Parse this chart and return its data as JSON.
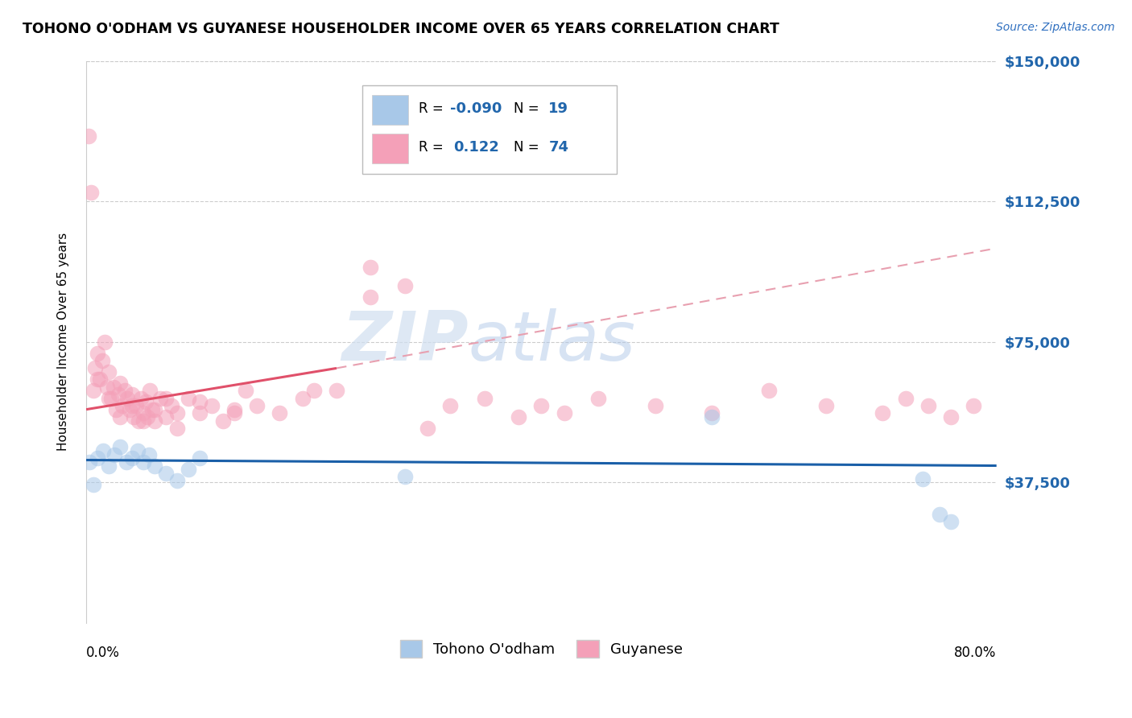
{
  "title": "TOHONO O'ODHAM VS GUYANESE HOUSEHOLDER INCOME OVER 65 YEARS CORRELATION CHART",
  "source": "Source: ZipAtlas.com",
  "ylabel": "Householder Income Over 65 years",
  "ytick_labels": [
    "$37,500",
    "$75,000",
    "$112,500",
    "$150,000"
  ],
  "ytick_values": [
    37500,
    75000,
    112500,
    150000
  ],
  "xlim": [
    0.0,
    80.0
  ],
  "ylim": [
    0,
    150000
  ],
  "watermark_left": "ZIP",
  "watermark_right": "atlas",
  "blue_color": "#a8c8e8",
  "pink_color": "#f4a0b8",
  "blue_line_color": "#1a5fa8",
  "pink_line_color": "#e0506a",
  "pink_dash_color": "#e8a0b0",
  "tohono_x": [
    0.3,
    0.6,
    1.0,
    1.5,
    2.0,
    2.5,
    3.0,
    3.5,
    4.0,
    4.5,
    5.0,
    5.5,
    6.0,
    7.0,
    8.0,
    9.0,
    10.0,
    28.0,
    55.0,
    73.5,
    75.0,
    76.0
  ],
  "tohono_y": [
    43000,
    37000,
    44000,
    46000,
    42000,
    45000,
    47000,
    43000,
    44000,
    46000,
    43000,
    45000,
    42000,
    40000,
    38000,
    41000,
    44000,
    39000,
    55000,
    38500,
    29000,
    27000
  ],
  "guyanese_x": [
    0.2,
    0.4,
    0.6,
    0.8,
    1.0,
    1.2,
    1.4,
    1.6,
    1.8,
    2.0,
    2.2,
    2.4,
    2.6,
    2.8,
    3.0,
    3.2,
    3.4,
    3.6,
    3.8,
    4.0,
    4.2,
    4.4,
    4.6,
    4.8,
    5.0,
    5.2,
    5.4,
    5.6,
    5.8,
    6.0,
    6.5,
    7.0,
    7.5,
    8.0,
    9.0,
    10.0,
    11.0,
    12.0,
    13.0,
    14.0,
    15.0,
    17.0,
    19.0,
    22.0,
    25.0,
    28.0,
    32.0,
    38.0,
    40.0,
    42.0,
    45.0,
    50.0,
    55.0,
    60.0,
    65.0,
    70.0,
    72.0,
    74.0,
    76.0,
    78.0,
    1.0,
    2.0,
    3.0,
    4.0,
    5.0,
    6.0,
    7.0,
    8.0,
    10.0,
    13.0,
    20.0,
    25.0,
    30.0,
    35.0
  ],
  "guyanese_y": [
    130000,
    115000,
    62000,
    68000,
    72000,
    65000,
    70000,
    75000,
    63000,
    67000,
    60000,
    63000,
    57000,
    61000,
    64000,
    58000,
    62000,
    60000,
    57000,
    61000,
    55000,
    58000,
    54000,
    60000,
    56000,
    59000,
    55000,
    62000,
    57000,
    54000,
    60000,
    55000,
    58000,
    52000,
    60000,
    56000,
    58000,
    54000,
    57000,
    62000,
    58000,
    56000,
    60000,
    62000,
    95000,
    90000,
    58000,
    55000,
    58000,
    56000,
    60000,
    58000,
    56000,
    62000,
    58000,
    56000,
    60000,
    58000,
    55000,
    58000,
    65000,
    60000,
    55000,
    58000,
    54000,
    57000,
    60000,
    56000,
    59000,
    56000,
    62000,
    87000,
    52000,
    60000
  ],
  "blue_line_x0": 0,
  "blue_line_x1": 80,
  "blue_line_y0": 43500,
  "blue_line_y1": 42000,
  "pink_solid_x0": 0,
  "pink_solid_x1": 22,
  "pink_solid_y0": 57000,
  "pink_solid_y1": 68000,
  "pink_dash_x0": 22,
  "pink_dash_x1": 80,
  "pink_dash_y0": 68000,
  "pink_dash_y1": 100000
}
